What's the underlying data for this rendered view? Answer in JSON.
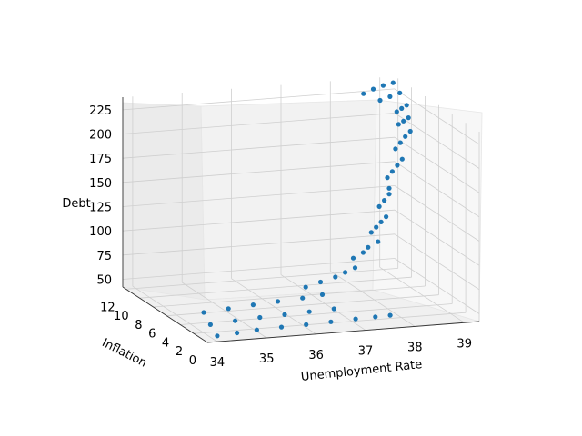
{
  "chart_data": {
    "type": "scatter",
    "projection": "3d",
    "xlabel": "Unemployment Rate",
    "ylabel": "Inflation",
    "zlabel": "Debt",
    "x_ticks": [
      "34",
      "35",
      "36",
      "37",
      "38",
      "39"
    ],
    "y_ticks": [
      "0",
      "2",
      "4",
      "6",
      "8",
      "10",
      "12"
    ],
    "z_ticks": [
      "50",
      "75",
      "100",
      "125",
      "150",
      "175",
      "200",
      "225"
    ],
    "xlim": [
      33.8,
      39.3
    ],
    "ylim": [
      0,
      12.5
    ],
    "zlim": [
      42,
      238
    ],
    "grid": true,
    "marker_color": "#1f77b4",
    "series": [
      {
        "points": [
          [
            34.0,
            0.0,
            48.0
          ],
          [
            34.4,
            0.0,
            49.5
          ],
          [
            34.8,
            0.0,
            51.0
          ],
          [
            35.3,
            0.0,
            52.0
          ],
          [
            35.8,
            0.0,
            52.5
          ],
          [
            36.3,
            0.0,
            53.5
          ],
          [
            36.8,
            0.0,
            54.5
          ],
          [
            37.2,
            0.0,
            55.0
          ],
          [
            37.5,
            0.0,
            55.5
          ],
          [
            34.0,
            1.0,
            55.0
          ],
          [
            34.5,
            1.0,
            57.0
          ],
          [
            35.0,
            1.0,
            58.5
          ],
          [
            35.5,
            1.0,
            59.5
          ],
          [
            36.0,
            1.0,
            60.5
          ],
          [
            36.5,
            1.0,
            61.5
          ],
          [
            34.0,
            2.0,
            63.0
          ],
          [
            34.5,
            2.0,
            65.0
          ],
          [
            35.0,
            2.0,
            67.0
          ],
          [
            35.5,
            2.0,
            68.5
          ],
          [
            36.0,
            2.0,
            70.0
          ],
          [
            36.4,
            2.0,
            72.0
          ],
          [
            36.2,
            3.0,
            76.0
          ],
          [
            36.5,
            3.0,
            80.0
          ],
          [
            36.8,
            3.0,
            84.0
          ],
          [
            37.0,
            3.0,
            88.0
          ],
          [
            37.2,
            3.0,
            92.0
          ],
          [
            37.3,
            4.0,
            97.0
          ],
          [
            37.5,
            4.0,
            102.0
          ],
          [
            37.6,
            4.0,
            107.0
          ],
          [
            37.8,
            4.0,
            112.0
          ],
          [
            37.8,
            5.0,
            117.0
          ],
          [
            37.9,
            5.0,
            122.0
          ],
          [
            38.0,
            5.0,
            127.0
          ],
          [
            38.1,
            5.0,
            132.0
          ],
          [
            38.1,
            6.0,
            138.0
          ],
          [
            38.2,
            6.0,
            144.0
          ],
          [
            38.3,
            6.0,
            150.0
          ],
          [
            38.3,
            6.0,
            156.0
          ],
          [
            38.4,
            7.0,
            162.0
          ],
          [
            38.5,
            7.0,
            168.0
          ],
          [
            38.6,
            7.0,
            174.0
          ],
          [
            38.7,
            7.0,
            180.0
          ],
          [
            38.7,
            8.0,
            186.0
          ],
          [
            38.8,
            8.0,
            192.0
          ],
          [
            38.9,
            8.0,
            198.0
          ],
          [
            39.0,
            8.0,
            203.0
          ],
          [
            38.9,
            9.0,
            206.0
          ],
          [
            39.0,
            9.0,
            209.0
          ],
          [
            39.1,
            9.0,
            212.0
          ],
          [
            39.0,
            10.0,
            214.0
          ],
          [
            39.1,
            10.0,
            217.0
          ],
          [
            39.2,
            10.0,
            220.0
          ],
          [
            38.8,
            11.0,
            222.0
          ],
          [
            39.0,
            11.0,
            225.0
          ],
          [
            39.2,
            11.0,
            228.0
          ],
          [
            38.6,
            12.0,
            225.0
          ],
          [
            38.8,
            12.0,
            229.0
          ],
          [
            39.0,
            12.0,
            232.0
          ],
          [
            39.2,
            12.0,
            234.0
          ]
        ]
      }
    ]
  }
}
